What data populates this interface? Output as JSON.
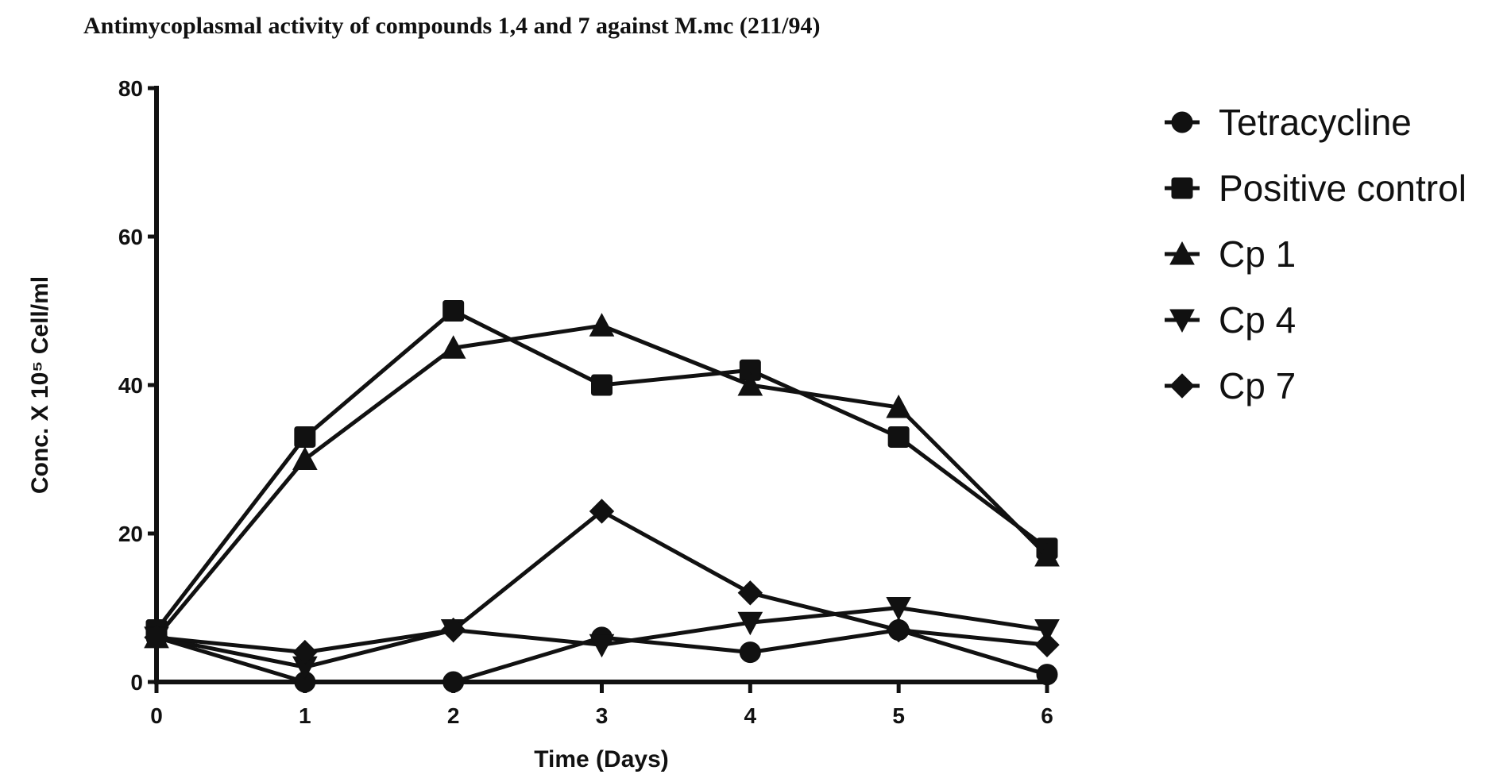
{
  "chart_data": {
    "type": "line",
    "title": "Antimycoplasmal activity of compounds 1,4 and 7 against M.mc (211/94)",
    "xlabel": "Time (Days)",
    "ylabel": "Conc. X 10⁵ Cell/ml",
    "x": [
      0,
      1,
      2,
      3,
      4,
      5,
      6
    ],
    "xlim": [
      0,
      6
    ],
    "ylim": [
      0,
      80
    ],
    "x_ticks": [
      "0",
      "1",
      "2",
      "3",
      "4",
      "5",
      "6"
    ],
    "y_ticks": [
      "0",
      "20",
      "40",
      "60",
      "80"
    ],
    "grid": false,
    "legend_position": "right",
    "series": [
      {
        "name": "Tetracycline",
        "marker": "circle",
        "values": [
          6,
          0,
          0,
          6,
          4,
          7,
          1
        ]
      },
      {
        "name": "Positive control",
        "marker": "square",
        "values": [
          7,
          33,
          50,
          40,
          42,
          33,
          18
        ]
      },
      {
        "name": "Cp 1",
        "marker": "triangle-up",
        "values": [
          6,
          30,
          45,
          48,
          40,
          37,
          17
        ]
      },
      {
        "name": "Cp 4",
        "marker": "triangle-down",
        "values": [
          6,
          2,
          7,
          5,
          8,
          10,
          7
        ]
      },
      {
        "name": "Cp 7",
        "marker": "diamond",
        "values": [
          6,
          4,
          7,
          23,
          12,
          7,
          5
        ]
      }
    ]
  }
}
